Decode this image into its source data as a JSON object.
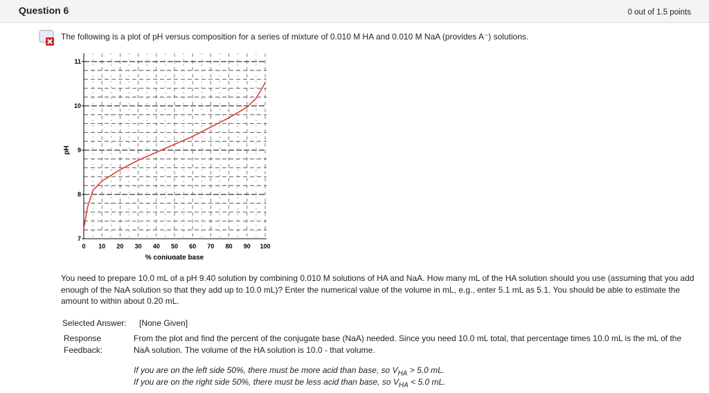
{
  "header": {
    "title": "Question 6",
    "score": "0 out of 1.5 points"
  },
  "question": {
    "intro": "The following is a plot of pH versus composition for a series of mixture of 0.010 M HA and 0.010 M NaA (provides A⁻) solutions.",
    "prompt": "You need to prepare 10.0 mL of a pH 9.40 solution by combining 0.010 M solutions of HA and NaA.  How many mL of the HA solution should you use (assuming that you add enough of the NaA solution so that they add up to 10.0 mL)?  Enter the numerical value of the volume in mL, e.g., enter 5.1 mL as 5.1.  You should be able to estimate the amount to within about 0.20 mL."
  },
  "chart_data": {
    "type": "line",
    "x_label": "% conjugate base",
    "y_label": "pH",
    "x": [
      0,
      2,
      5,
      10,
      20,
      30,
      40,
      50,
      60,
      70,
      80,
      90,
      95,
      100
    ],
    "values": [
      7.23,
      7.7,
      8.09,
      8.3,
      8.56,
      8.77,
      8.95,
      9.13,
      9.31,
      9.52,
      9.73,
      9.97,
      10.17,
      10.52
    ],
    "color": "#d9342b",
    "xlim": [
      0,
      100
    ],
    "ylim": [
      7,
      11
    ],
    "xticks": [
      0,
      10,
      20,
      30,
      40,
      50,
      60,
      70,
      80,
      90,
      100
    ],
    "yticks": [
      7,
      8,
      9,
      10,
      11
    ],
    "grid": true
  },
  "answer": {
    "selected_label": "Selected Answer:",
    "selected_value": "[None Given]",
    "feedback_label": "Response Feedback:",
    "feedback": "From the plot and find the percent of the conjugate base (NaA) needed.  Since you need 10.0 mL total, that percentage times 10.0 mL is the mL of the NaA solution.  The volume of the HA solution is 10.0 - that volume.",
    "note_left": [
      "If you are on the left side 50%, there must be more acid than base, so V",
      "HA",
      " > 5.0 mL."
    ],
    "note_right": [
      "If you are on the right side 50%, there must be less acid than base, so V",
      "HA",
      " < 5.0 mL."
    ]
  }
}
